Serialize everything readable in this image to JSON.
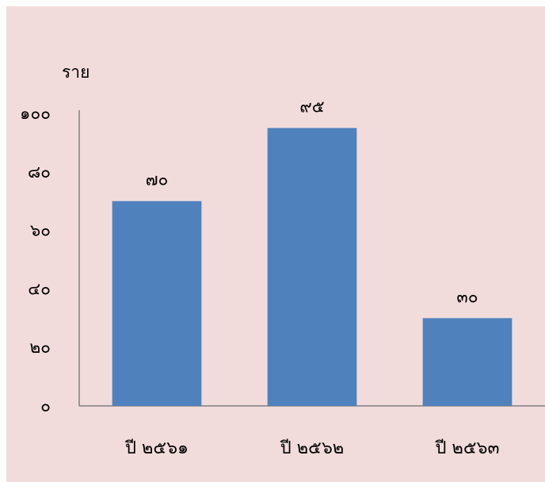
{
  "colors": {
    "background": "#f2dcdb",
    "bar": "#4f81bd",
    "axis": "#7f7f7f",
    "text": "#000000"
  },
  "chart_data": {
    "type": "bar",
    "title": "",
    "xlabel": "",
    "ylabel": "ราย",
    "categories": [
      "ปี ๒๕๖๑",
      "ปี ๒๕๖๒",
      "ปี ๒๕๖๓"
    ],
    "values": [
      70,
      95,
      30
    ],
    "value_labels": [
      "๗๐",
      "๙๕",
      "๓๐"
    ],
    "ylim": [
      0,
      100
    ],
    "yticks": [
      0,
      20,
      40,
      60,
      80,
      100
    ],
    "ytick_labels": [
      "๐",
      "๒๐",
      "๔๐",
      "๖๐",
      "๘๐",
      "๑๐๐"
    ],
    "grid": false,
    "legend": "none"
  }
}
